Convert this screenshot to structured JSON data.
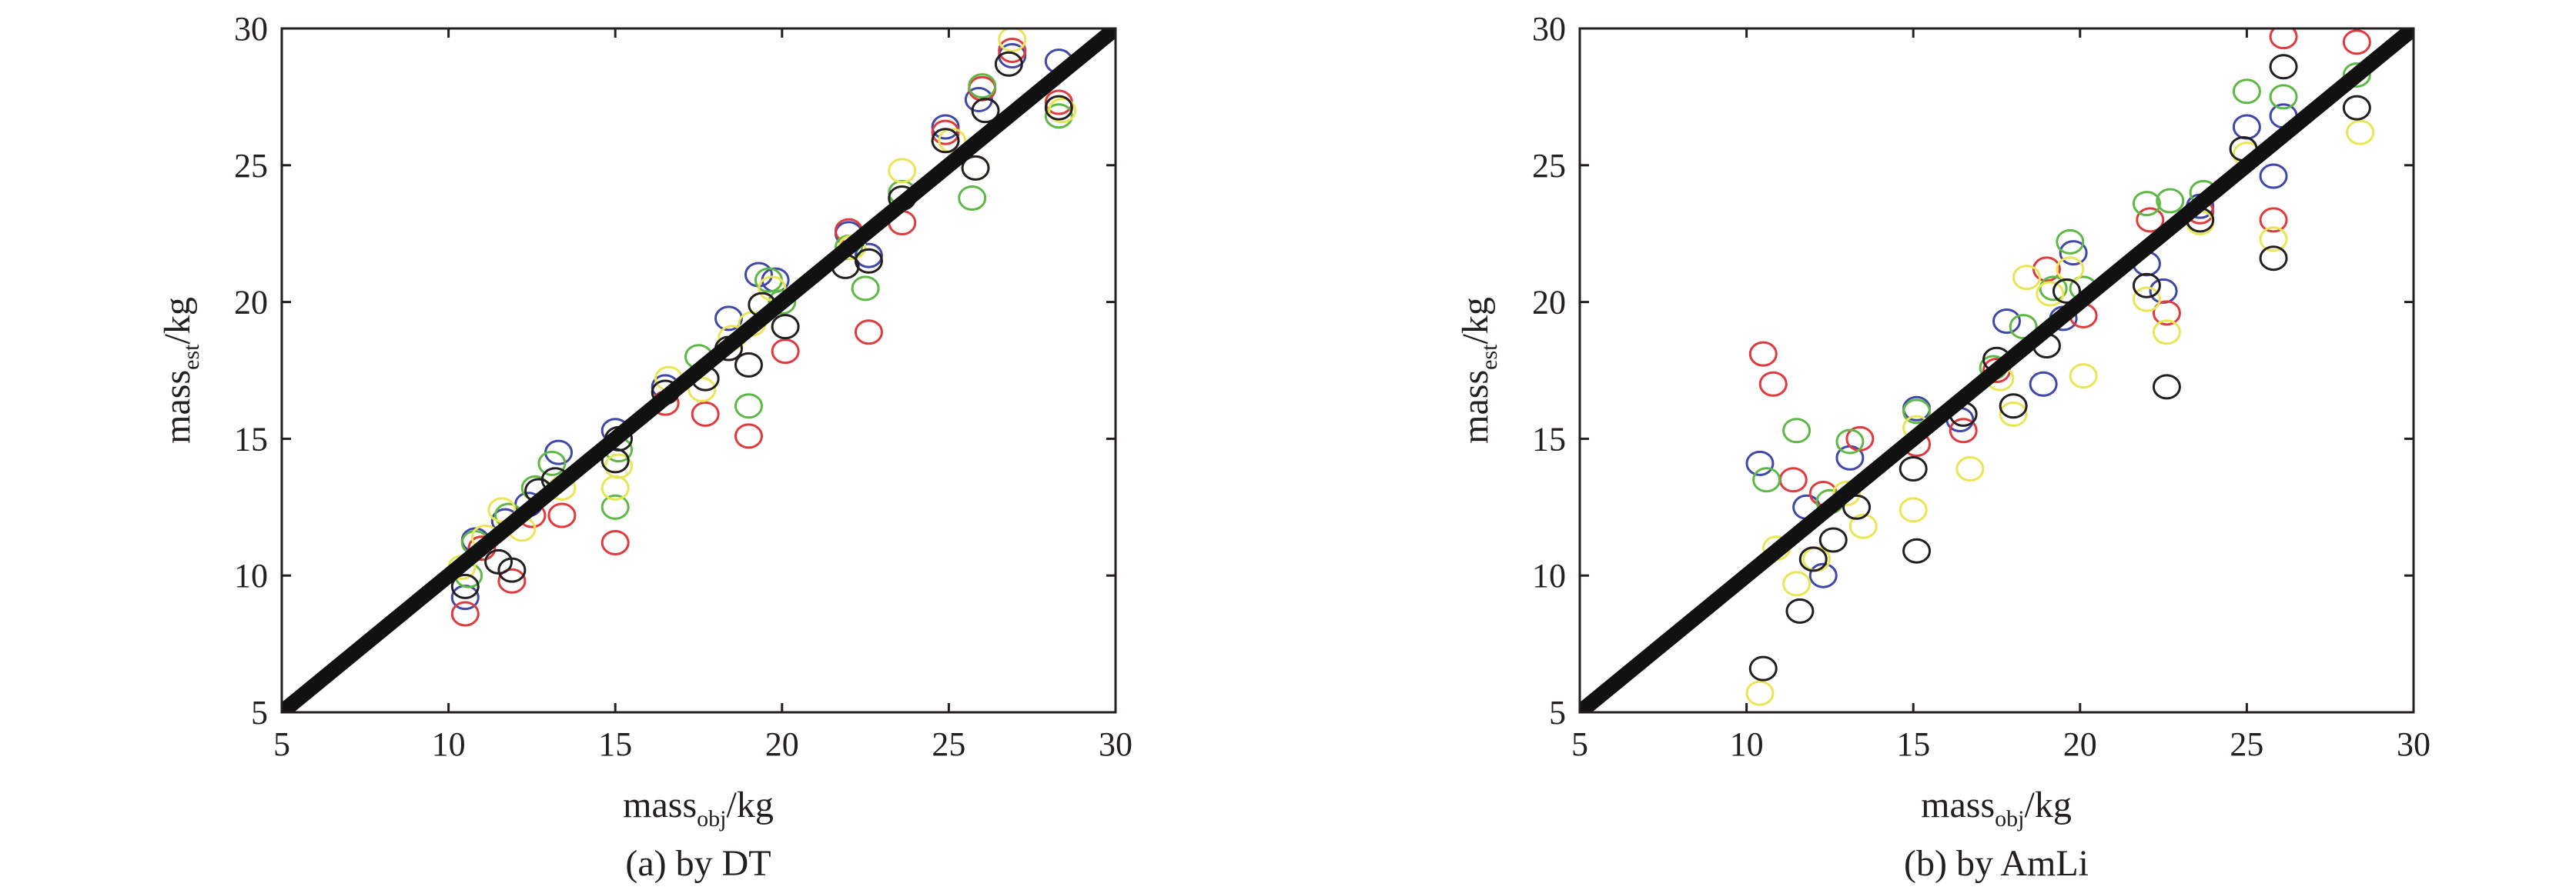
{
  "colors": {
    "blue": "#3f48a8",
    "red": "#e03a3e",
    "green": "#5fb845",
    "yellow": "#e9e553",
    "black": "#231f20",
    "axis": "#231f20"
  },
  "chart_data": [
    {
      "type": "scatter",
      "caption": "(a) by DT",
      "xlabel_main": "mass",
      "xlabel_sub": "obj",
      "xlabel_unit": "/kg",
      "ylabel_main": "mass",
      "ylabel_sub": "est",
      "ylabel_unit": "/kg",
      "xlim": [
        5,
        30
      ],
      "ylim": [
        5,
        30
      ],
      "xticks": [
        "5",
        "10",
        "15",
        "20",
        "25",
        "30"
      ],
      "yticks": [
        "5",
        "10",
        "15",
        "20",
        "25",
        "30"
      ],
      "reference_line": {
        "from": [
          5,
          5
        ],
        "to": [
          30,
          30
        ],
        "color": "#111111"
      },
      "grid": false,
      "legend": "none",
      "series": [
        {
          "color": "blue",
          "points": [
            [
              10.5,
              9.2
            ],
            [
              10.8,
              11.3
            ],
            [
              11.7,
              12.0
            ],
            [
              12.4,
              12.6
            ],
            [
              13.3,
              14.5
            ],
            [
              15.0,
              15.3
            ],
            [
              16.5,
              16.9
            ],
            [
              18.4,
              19.4
            ],
            [
              19.3,
              21.0
            ],
            [
              19.8,
              20.8
            ],
            [
              22.0,
              22.5
            ],
            [
              22.6,
              21.7
            ],
            [
              24.9,
              26.4
            ],
            [
              25.9,
              27.4
            ],
            [
              26.9,
              29.0
            ],
            [
              28.3,
              28.8
            ]
          ]
        },
        {
          "color": "red",
          "points": [
            [
              10.5,
              8.6
            ],
            [
              11.0,
              11.0
            ],
            [
              11.9,
              9.8
            ],
            [
              12.5,
              12.2
            ],
            [
              13.4,
              12.2
            ],
            [
              15.0,
              11.2
            ],
            [
              16.5,
              16.3
            ],
            [
              17.7,
              15.9
            ],
            [
              19.0,
              15.1
            ],
            [
              20.1,
              18.2
            ],
            [
              22.0,
              22.6
            ],
            [
              22.6,
              18.9
            ],
            [
              23.6,
              22.9
            ],
            [
              24.9,
              26.2
            ],
            [
              26.0,
              27.8
            ],
            [
              26.9,
              29.2
            ],
            [
              28.3,
              27.3
            ]
          ]
        },
        {
          "color": "green",
          "points": [
            [
              10.6,
              10.0
            ],
            [
              10.8,
              11.2
            ],
            [
              11.8,
              12.2
            ],
            [
              12.6,
              13.2
            ],
            [
              13.1,
              14.1
            ],
            [
              15.0,
              12.5
            ],
            [
              15.1,
              14.6
            ],
            [
              17.5,
              18.0
            ],
            [
              19.0,
              16.2
            ],
            [
              19.6,
              20.8
            ],
            [
              20.0,
              20.0
            ],
            [
              22.0,
              22.0
            ],
            [
              22.5,
              20.5
            ],
            [
              23.6,
              24.0
            ],
            [
              25.7,
              23.8
            ],
            [
              26.0,
              27.9
            ],
            [
              28.3,
              26.8
            ]
          ]
        },
        {
          "color": "yellow",
          "points": [
            [
              10.4,
              10.3
            ],
            [
              11.1,
              11.4
            ],
            [
              11.6,
              12.4
            ],
            [
              12.2,
              11.7
            ],
            [
              13.4,
              13.2
            ],
            [
              15.0,
              13.2
            ],
            [
              15.1,
              14.0
            ],
            [
              16.6,
              17.2
            ],
            [
              17.6,
              16.8
            ],
            [
              18.5,
              18.7
            ],
            [
              19.1,
              19.2
            ],
            [
              19.7,
              20.5
            ],
            [
              22.1,
              22.0
            ],
            [
              23.6,
              24.8
            ],
            [
              25.1,
              25.9
            ],
            [
              25.8,
              24.9
            ],
            [
              26.9,
              29.6
            ],
            [
              28.4,
              27.0
            ]
          ]
        },
        {
          "color": "black",
          "points": [
            [
              10.5,
              9.6
            ],
            [
              11.5,
              10.5
            ],
            [
              11.9,
              10.2
            ],
            [
              12.7,
              13.1
            ],
            [
              13.2,
              13.5
            ],
            [
              15.0,
              14.2
            ],
            [
              15.1,
              15.0
            ],
            [
              16.5,
              16.7
            ],
            [
              17.7,
              17.2
            ],
            [
              18.4,
              18.3
            ],
            [
              19.0,
              17.7
            ],
            [
              19.4,
              19.9
            ],
            [
              20.1,
              19.1
            ],
            [
              21.9,
              21.3
            ],
            [
              22.6,
              21.5
            ],
            [
              23.6,
              23.8
            ],
            [
              24.9,
              25.9
            ],
            [
              25.8,
              24.9
            ],
            [
              26.1,
              27.0
            ],
            [
              26.8,
              28.7
            ],
            [
              28.3,
              27.1
            ]
          ]
        }
      ]
    },
    {
      "type": "scatter",
      "caption": "(b) by AmLi",
      "xlabel_main": "mass",
      "xlabel_sub": "obj",
      "xlabel_unit": "/kg",
      "ylabel_main": "mass",
      "ylabel_sub": "est",
      "ylabel_unit": "/kg",
      "xlim": [
        5,
        30
      ],
      "ylim": [
        5,
        30
      ],
      "xticks": [
        "5",
        "10",
        "15",
        "20",
        "25",
        "30"
      ],
      "yticks": [
        "5",
        "10",
        "15",
        "20",
        "25",
        "30"
      ],
      "reference_line": {
        "from": [
          5,
          5
        ],
        "to": [
          30,
          30
        ],
        "color": "#111111"
      },
      "grid": false,
      "legend": "none",
      "series": [
        {
          "color": "blue",
          "points": [
            [
              10.4,
              14.1
            ],
            [
              11.8,
              12.5
            ],
            [
              12.3,
              10.0
            ],
            [
              13.1,
              14.3
            ],
            [
              15.1,
              16.1
            ],
            [
              16.4,
              15.7
            ],
            [
              17.8,
              19.3
            ],
            [
              18.9,
              17.0
            ],
            [
              19.5,
              19.4
            ],
            [
              19.8,
              21.8
            ],
            [
              22.0,
              21.4
            ],
            [
              22.5,
              20.4
            ],
            [
              23.6,
              23.5
            ],
            [
              25.0,
              26.4
            ],
            [
              25.8,
              24.6
            ],
            [
              26.1,
              26.8
            ]
          ]
        },
        {
          "color": "red",
          "points": [
            [
              10.5,
              18.1
            ],
            [
              10.8,
              17.0
            ],
            [
              11.4,
              13.5
            ],
            [
              12.3,
              13.0
            ],
            [
              13.4,
              15.0
            ],
            [
              15.1,
              14.8
            ],
            [
              16.5,
              15.3
            ],
            [
              17.5,
              17.5
            ],
            [
              19.0,
              21.2
            ],
            [
              20.1,
              19.5
            ],
            [
              22.1,
              23.0
            ],
            [
              22.6,
              19.6
            ],
            [
              23.6,
              23.3
            ],
            [
              25.8,
              23.0
            ],
            [
              26.1,
              29.7
            ],
            [
              28.3,
              29.5
            ]
          ]
        },
        {
          "color": "green",
          "points": [
            [
              10.6,
              13.5
            ],
            [
              11.5,
              15.3
            ],
            [
              12.5,
              12.7
            ],
            [
              13.1,
              14.9
            ],
            [
              15.1,
              16.0
            ],
            [
              17.4,
              17.6
            ],
            [
              18.3,
              19.1
            ],
            [
              19.2,
              20.5
            ],
            [
              19.7,
              22.2
            ],
            [
              20.1,
              20.5
            ],
            [
              22.0,
              23.6
            ],
            [
              22.7,
              23.7
            ],
            [
              23.7,
              24.0
            ],
            [
              25.0,
              27.7
            ],
            [
              26.1,
              27.5
            ],
            [
              28.3,
              28.3
            ]
          ]
        },
        {
          "color": "yellow",
          "points": [
            [
              10.4,
              5.7
            ],
            [
              10.9,
              11.0
            ],
            [
              11.5,
              9.7
            ],
            [
              12.1,
              10.6
            ],
            [
              13.0,
              13.0
            ],
            [
              13.5,
              11.8
            ],
            [
              15.0,
              12.4
            ],
            [
              15.1,
              15.4
            ],
            [
              16.7,
              13.9
            ],
            [
              17.6,
              17.2
            ],
            [
              18.0,
              15.9
            ],
            [
              18.4,
              20.9
            ],
            [
              19.1,
              20.3
            ],
            [
              19.7,
              21.2
            ],
            [
              20.1,
              17.3
            ],
            [
              22.0,
              20.1
            ],
            [
              22.6,
              18.9
            ],
            [
              23.6,
              22.9
            ],
            [
              25.0,
              25.4
            ],
            [
              25.8,
              22.3
            ],
            [
              28.4,
              26.2
            ]
          ]
        },
        {
          "color": "black",
          "points": [
            [
              10.5,
              6.6
            ],
            [
              11.6,
              8.7
            ],
            [
              12.0,
              10.6
            ],
            [
              12.6,
              11.3
            ],
            [
              13.3,
              12.5
            ],
            [
              15.1,
              10.9
            ],
            [
              15.0,
              13.9
            ],
            [
              16.5,
              15.9
            ],
            [
              17.5,
              17.9
            ],
            [
              18.0,
              16.2
            ],
            [
              19.0,
              18.4
            ],
            [
              19.6,
              20.4
            ],
            [
              22.0,
              20.6
            ],
            [
              22.6,
              16.9
            ],
            [
              23.6,
              23.0
            ],
            [
              24.9,
              25.6
            ],
            [
              25.8,
              21.6
            ],
            [
              26.1,
              28.6
            ],
            [
              28.3,
              27.1
            ]
          ]
        }
      ]
    }
  ]
}
